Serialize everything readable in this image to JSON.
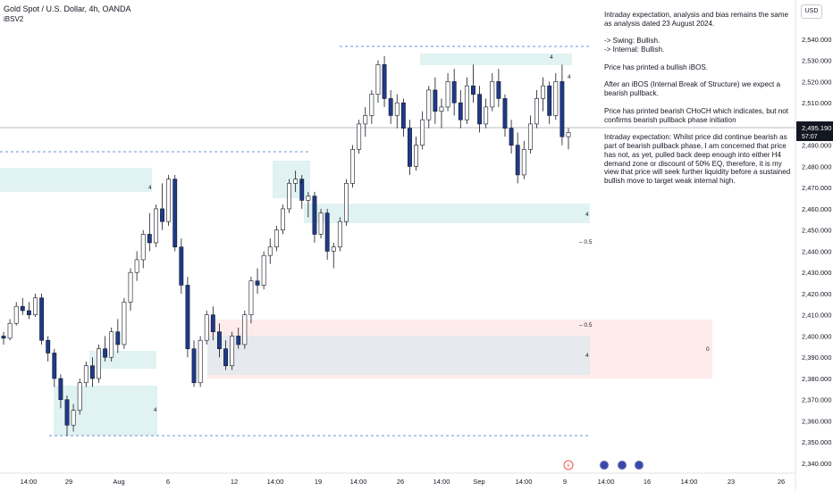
{
  "header": {
    "symbol_title": "Gold Spot / U.S. Dollar, 4h, OANDA",
    "indicator": "iBSV2"
  },
  "currency_button": "USD",
  "price_axis": {
    "ticks": [
      "2,540.000",
      "2,530.000",
      "2,520.000",
      "2,510.000",
      "2,500.000",
      "2,490.000",
      "2,480.000",
      "2,470.000",
      "2,460.000",
      "2,450.000",
      "2,440.000",
      "2,430.000",
      "2,420.000",
      "2,410.000",
      "2,400.000",
      "2,390.000",
      "2,380.000",
      "2,370.000",
      "2,360.000",
      "2,350.000",
      "2,340.000"
    ],
    "current_price": "2,495.190",
    "countdown": "57:07"
  },
  "time_axis": {
    "ticks": [
      "14:00",
      "29",
      "Aug",
      "6",
      "12",
      "14:00",
      "19",
      "14:00",
      "26",
      "14:00",
      "Sep",
      "14:00",
      "9",
      "14:00",
      "16",
      "14:00",
      "23",
      "26"
    ]
  },
  "commentary": {
    "p1": "Intraday expectation, analysis and bias remains the same as analysis dated 23 August 2024.",
    "p2a": "-> Swing:  Bullish.",
    "p2b": "-> Internal:  Bullish.",
    "p3": "Price has printed a bullish iBOS.",
    "p4": "After an iBOS (Internal Break of Structure) we expect a bearish pullback.",
    "p5": "Price has printed bearish CHoCH which indicates, but not confirms bearish pullback phase initiation",
    "p6": "Intraday expectation: Whilst price did continue bearish as part of bearish pullback phase, I am concerned that price has not, as yet, pulled back deep enough into either H4 demand zone or discount of 50% EQ, therefore, it is my view that price will seek further liquidity before a sustained bullish move to target weak internal high."
  },
  "chart_labels": {
    "eq_upper": "0.5",
    "eq_lower": "0.5",
    "zone_zero": "0",
    "zone_tag": "4"
  },
  "colors": {
    "bull_body": "#ffffff",
    "bear_body": "#1e3a8a",
    "wick": "#131722",
    "demand_zone": "#e0f2f1",
    "premium_zone": "#fde2e2",
    "discount_zone": "#e6e9ee",
    "structure_line": "#3b6fd8"
  },
  "chart_data": {
    "type": "candlestick",
    "title": "Gold Spot / U.S. Dollar, 4h, OANDA",
    "ylim": [
      2340,
      2545
    ],
    "current_price": 2495.19,
    "candles": [
      [
        2400,
        2402,
        2396,
        2399
      ],
      [
        2399,
        2408,
        2398,
        2406
      ],
      [
        2406,
        2416,
        2405,
        2414
      ],
      [
        2414,
        2418,
        2410,
        2412
      ],
      [
        2412,
        2416,
        2408,
        2410
      ],
      [
        2410,
        2420,
        2409,
        2418
      ],
      [
        2418,
        2420,
        2396,
        2398
      ],
      [
        2398,
        2400,
        2388,
        2392
      ],
      [
        2392,
        2394,
        2376,
        2380
      ],
      [
        2380,
        2382,
        2366,
        2370
      ],
      [
        2370,
        2372,
        2353,
        2358
      ],
      [
        2358,
        2368,
        2355,
        2365
      ],
      [
        2365,
        2380,
        2363,
        2378
      ],
      [
        2378,
        2388,
        2376,
        2386
      ],
      [
        2386,
        2390,
        2376,
        2380
      ],
      [
        2380,
        2396,
        2378,
        2394
      ],
      [
        2394,
        2400,
        2388,
        2390
      ],
      [
        2390,
        2404,
        2388,
        2402
      ],
      [
        2402,
        2408,
        2392,
        2396
      ],
      [
        2396,
        2418,
        2394,
        2416
      ],
      [
        2416,
        2432,
        2412,
        2430
      ],
      [
        2430,
        2440,
        2426,
        2436
      ],
      [
        2436,
        2450,
        2432,
        2448
      ],
      [
        2448,
        2458,
        2440,
        2444
      ],
      [
        2444,
        2462,
        2442,
        2460
      ],
      [
        2460,
        2472,
        2450,
        2454
      ],
      [
        2454,
        2476,
        2452,
        2474
      ],
      [
        2474,
        2476,
        2440,
        2442
      ],
      [
        2442,
        2446,
        2420,
        2424
      ],
      [
        2424,
        2428,
        2390,
        2394
      ],
      [
        2394,
        2398,
        2376,
        2378
      ],
      [
        2378,
        2400,
        2376,
        2398
      ],
      [
        2398,
        2412,
        2396,
        2410
      ],
      [
        2410,
        2414,
        2398,
        2402
      ],
      [
        2402,
        2406,
        2390,
        2394
      ],
      [
        2394,
        2398,
        2384,
        2386
      ],
      [
        2386,
        2402,
        2384,
        2400
      ],
      [
        2400,
        2404,
        2394,
        2396
      ],
      [
        2396,
        2412,
        2394,
        2410
      ],
      [
        2410,
        2428,
        2406,
        2426
      ],
      [
        2426,
        2432,
        2420,
        2424
      ],
      [
        2424,
        2440,
        2422,
        2438
      ],
      [
        2438,
        2446,
        2434,
        2442
      ],
      [
        2442,
        2452,
        2440,
        2450
      ],
      [
        2450,
        2462,
        2448,
        2460
      ],
      [
        2460,
        2474,
        2458,
        2472
      ],
      [
        2472,
        2478,
        2468,
        2474
      ],
      [
        2474,
        2476,
        2460,
        2464
      ],
      [
        2464,
        2468,
        2456,
        2466
      ],
      [
        2466,
        2468,
        2444,
        2448
      ],
      [
        2448,
        2460,
        2446,
        2458
      ],
      [
        2458,
        2460,
        2436,
        2440
      ],
      [
        2440,
        2444,
        2432,
        2442
      ],
      [
        2442,
        2456,
        2440,
        2454
      ],
      [
        2454,
        2474,
        2452,
        2472
      ],
      [
        2472,
        2490,
        2470,
        2488
      ],
      [
        2488,
        2502,
        2486,
        2500
      ],
      [
        2500,
        2508,
        2494,
        2504
      ],
      [
        2504,
        2516,
        2500,
        2514
      ],
      [
        2514,
        2530,
        2510,
        2528
      ],
      [
        2528,
        2532,
        2508,
        2512
      ],
      [
        2512,
        2516,
        2500,
        2504
      ],
      [
        2504,
        2514,
        2498,
        2510
      ],
      [
        2510,
        2512,
        2494,
        2498
      ],
      [
        2498,
        2502,
        2476,
        2480
      ],
      [
        2480,
        2494,
        2478,
        2490
      ],
      [
        2490,
        2506,
        2488,
        2502
      ],
      [
        2502,
        2518,
        2498,
        2516
      ],
      [
        2516,
        2522,
        2500,
        2506
      ],
      [
        2506,
        2512,
        2498,
        2508
      ],
      [
        2508,
        2524,
        2506,
        2520
      ],
      [
        2520,
        2526,
        2504,
        2510
      ],
      [
        2510,
        2516,
        2498,
        2502
      ],
      [
        2502,
        2522,
        2500,
        2518
      ],
      [
        2518,
        2528,
        2510,
        2514
      ],
      [
        2514,
        2518,
        2496,
        2500
      ],
      [
        2500,
        2512,
        2498,
        2508
      ],
      [
        2508,
        2524,
        2506,
        2520
      ],
      [
        2520,
        2526,
        2508,
        2512
      ],
      [
        2512,
        2514,
        2494,
        2498
      ],
      [
        2498,
        2502,
        2486,
        2490
      ],
      [
        2490,
        2496,
        2472,
        2476
      ],
      [
        2476,
        2492,
        2474,
        2488
      ],
      [
        2488,
        2504,
        2486,
        2500
      ],
      [
        2500,
        2516,
        2498,
        2512
      ],
      [
        2512,
        2522,
        2506,
        2518
      ],
      [
        2518,
        2520,
        2500,
        2504
      ],
      [
        2504,
        2524,
        2502,
        2520
      ],
      [
        2520,
        2528,
        2490,
        2494
      ],
      [
        2494,
        2498,
        2488,
        2496
      ]
    ]
  }
}
